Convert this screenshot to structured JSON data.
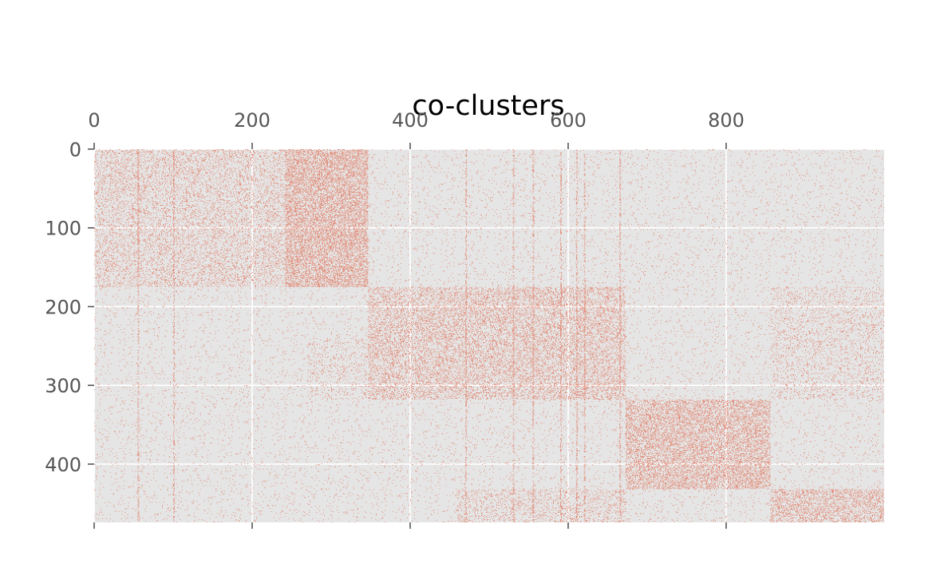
{
  "chart_data": {
    "type": "heatmap",
    "title": "co-clusters",
    "xlabel": "",
    "ylabel": "",
    "xlim": [
      0,
      1000
    ],
    "ylim": [
      0,
      474
    ],
    "x_ticks": [
      0,
      200,
      400,
      600,
      800
    ],
    "y_ticks": [
      0,
      100,
      200,
      300,
      400
    ],
    "x_tick_labels": [
      "0",
      "200",
      "400",
      "600",
      "800"
    ],
    "y_tick_labels": [
      "0",
      "100",
      "200",
      "300",
      "400"
    ],
    "grid": true,
    "x_axis_position": "top",
    "y_axis_inverted": true,
    "background_noise_density": 0.03,
    "co_clusters": [
      {
        "rows": [
          0,
          175
        ],
        "cols": [
          0,
          242
        ],
        "density": 0.18
      },
      {
        "rows": [
          0,
          175
        ],
        "cols": [
          242,
          347
        ],
        "density": 0.42
      },
      {
        "rows": [
          175,
          318
        ],
        "cols": [
          347,
          673
        ],
        "density": 0.26
      },
      {
        "rows": [
          175,
          318
        ],
        "cols": [
          856,
          1000
        ],
        "density": 0.12
      },
      {
        "rows": [
          318,
          432
        ],
        "cols": [
          673,
          856
        ],
        "density": 0.36
      },
      {
        "rows": [
          432,
          474
        ],
        "cols": [
          856,
          1000
        ],
        "density": 0.3
      },
      {
        "rows": [
          432,
          474
        ],
        "cols": [
          460,
          673
        ],
        "density": 0.15
      },
      {
        "rows": [
          240,
          318
        ],
        "cols": [
          270,
          347
        ],
        "density": 0.1
      }
    ],
    "dense_columns": [
      55,
      100,
      470,
      530,
      555,
      590,
      610,
      620,
      665
    ],
    "colors": {
      "point": "#e0735a",
      "background": "#e5e5e5",
      "grid": "#ffffff",
      "tick": "#555555",
      "title": "#000000"
    }
  }
}
